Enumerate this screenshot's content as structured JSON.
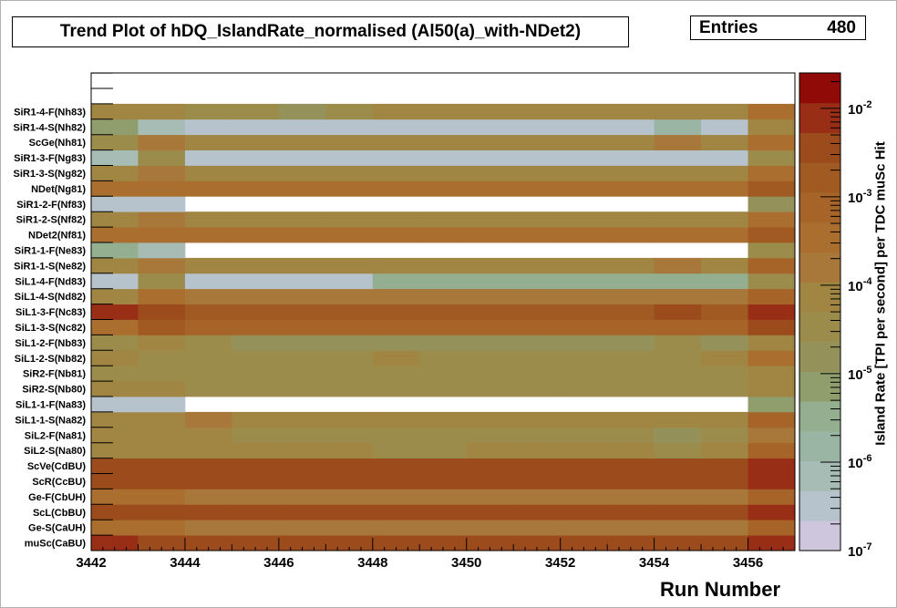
{
  "title": "Trend Plot of hDQ_IslandRate_normalised (Al50(a)_with-NDet2)",
  "stats": {
    "label": "Entries",
    "value": "480"
  },
  "chart_data": {
    "type": "heatmap",
    "title": "Trend Plot of hDQ_IslandRate_normalised (Al50(a)_with-NDet2)",
    "xlabel": "Run Number",
    "zlabel": "Island Rate [TPI per second] per TDC muSc Hit",
    "xlim": [
      3442,
      3457
    ],
    "x_ticks": [
      3442,
      3444,
      3446,
      3448,
      3450,
      3452,
      3454,
      3456
    ],
    "x_tick_labels": [
      "3442",
      "3444",
      "3446",
      "3448",
      "3450",
      "3452",
      "3454",
      "3456"
    ],
    "runs": [
      3442,
      3443,
      3444,
      3445,
      3446,
      3447,
      3448,
      3449,
      3450,
      3451,
      3452,
      3453,
      3454,
      3455,
      3456
    ],
    "z_scale": "log",
    "z_ticks_exponent": [
      -7,
      -6,
      -5,
      -4,
      -3,
      -2
    ],
    "z_tick_labels": [
      "10^-7",
      "10^-6",
      "10^-5",
      "10^-4",
      "10^-3",
      "10^-2"
    ],
    "z_palette": [
      "#cdc6dc",
      "#b6c3cc",
      "#a6bcb4",
      "#9ab5a4",
      "#94ae90",
      "#909e6e",
      "#94925a",
      "#9c8c4c",
      "#a08642",
      "#a8783a",
      "#aa6e2e",
      "#a66428",
      "#a05a22",
      "#9c4c1c",
      "#982e16",
      "#900a08"
    ],
    "empty_rows": [],
    "rows": [
      {
        "label": "muSc(CaBU)",
        "values": [
          -2.2,
          -2.5,
          -2.6,
          -2.6,
          -2.6,
          -2.6,
          -2.6,
          -2.6,
          -2.6,
          -2.6,
          -2.6,
          -2.6,
          -2.6,
          -2.6,
          -2.1
        ]
      },
      {
        "label": "Ge-S(CaUH)",
        "values": [
          -3.6,
          -3.6,
          -3.8,
          -3.8,
          -3.8,
          -3.8,
          -3.8,
          -3.8,
          -3.8,
          -3.8,
          -3.8,
          -3.8,
          -3.8,
          -3.8,
          -3.0
        ]
      },
      {
        "label": "ScL(CbBU)",
        "values": [
          -2.3,
          -2.5,
          -2.6,
          -2.6,
          -2.6,
          -2.6,
          -2.6,
          -2.6,
          -2.6,
          -2.6,
          -2.6,
          -2.6,
          -2.6,
          -2.6,
          -2.2
        ]
      },
      {
        "label": "Ge-F(CbUH)",
        "values": [
          -3.5,
          -3.6,
          -3.7,
          -3.7,
          -3.7,
          -3.7,
          -3.7,
          -3.7,
          -3.7,
          -3.7,
          -3.7,
          -3.7,
          -3.7,
          -3.7,
          -3.0
        ]
      },
      {
        "label": "ScR(CcBU)",
        "values": [
          -2.3,
          -2.5,
          -2.6,
          -2.6,
          -2.6,
          -2.6,
          -2.6,
          -2.6,
          -2.6,
          -2.6,
          -2.6,
          -2.6,
          -2.6,
          -2.6,
          -2.2
        ]
      },
      {
        "label": "ScVe(CdBU)",
        "values": [
          -2.6,
          -2.5,
          -2.6,
          -2.6,
          -2.6,
          -2.6,
          -2.6,
          -2.6,
          -2.6,
          -2.6,
          -2.6,
          -2.6,
          -2.6,
          -2.6,
          -2.2
        ]
      },
      {
        "label": "SiL2-S(Na80)",
        "values": [
          -4.0,
          -4.1,
          -4.0,
          -4.2,
          -4.2,
          -4.2,
          -4.4,
          -4.4,
          -4.3,
          -4.2,
          -4.3,
          -4.3,
          -4.4,
          -4.2,
          -3.2
        ]
      },
      {
        "label": "SiL2-F(Na81)",
        "values": [
          -4.2,
          -4.3,
          -4.3,
          -4.5,
          -4.5,
          -4.5,
          -4.5,
          -4.5,
          -4.6,
          -4.5,
          -4.5,
          -4.5,
          -4.7,
          -4.4,
          -3.8
        ]
      },
      {
        "label": "SiL1-1-S(Na82)",
        "values": [
          -4.0,
          -4.1,
          -3.9,
          -4.1,
          -4.1,
          -4.1,
          -4.1,
          -4.1,
          -4.1,
          -4.1,
          -4.1,
          -4.1,
          -4.1,
          -4.1,
          -3.2
        ]
      },
      {
        "label": "SiL1-1-F(Na83)",
        "values": [
          -6.5,
          -6.5,
          null,
          null,
          null,
          null,
          null,
          null,
          null,
          null,
          null,
          null,
          null,
          null,
          -5.2
        ]
      },
      {
        "label": "SiR2-S(Nb80)",
        "values": [
          -4.3,
          -4.3,
          -4.4,
          -4.4,
          -4.4,
          -4.4,
          -4.4,
          -4.4,
          -4.4,
          -4.4,
          -4.4,
          -4.4,
          -4.4,
          -4.4,
          -4.0
        ]
      },
      {
        "label": "SiR2-F(Nb81)",
        "values": [
          -4.5,
          -4.6,
          -4.6,
          -4.6,
          -4.6,
          -4.6,
          -4.6,
          -4.6,
          -4.6,
          -4.6,
          -4.6,
          -4.6,
          -4.6,
          -4.6,
          -4.0
        ]
      },
      {
        "label": "SiL1-2-S(Nb82)",
        "values": [
          -4.3,
          -4.4,
          -4.4,
          -4.5,
          -4.5,
          -4.5,
          -4.3,
          -4.4,
          -4.5,
          -4.4,
          -4.5,
          -4.4,
          -4.5,
          -4.3,
          -3.5
        ]
      },
      {
        "label": "SiL1-2-F(Nb83)",
        "values": [
          -4.5,
          -4.2,
          -4.6,
          -4.8,
          -4.8,
          -4.8,
          -4.7,
          -4.7,
          -4.7,
          -4.7,
          -4.7,
          -4.7,
          -4.6,
          -4.7,
          -4.1
        ]
      },
      {
        "label": "SiL1-3-S(Nc82)",
        "values": [
          -3.3,
          -2.9,
          -3.0,
          -3.0,
          -3.0,
          -3.0,
          -3.0,
          -3.0,
          -3.0,
          -3.0,
          -3.0,
          -3.0,
          -3.0,
          -3.0,
          -2.4
        ]
      },
      {
        "label": "SiL1-3-F(Nc83)",
        "values": [
          -2.2,
          -2.4,
          -2.8,
          -2.8,
          -2.8,
          -2.8,
          -2.8,
          -2.8,
          -2.8,
          -2.8,
          -2.8,
          -2.8,
          -2.5,
          -2.8,
          -2.0
        ]
      },
      {
        "label": "SiL1-4-S(Nd82)",
        "values": [
          -4.0,
          -3.6,
          -3.9,
          -3.9,
          -3.9,
          -3.9,
          -3.9,
          -3.9,
          -3.9,
          -3.9,
          -3.9,
          -3.9,
          -3.9,
          -3.9,
          -3.0
        ]
      },
      {
        "label": "SiL1-4-F(Nd83)",
        "values": [
          -6.5,
          -4.5,
          -6.5,
          -6.5,
          -6.5,
          -6.5,
          -5.5,
          -5.5,
          -5.5,
          -5.5,
          -5.5,
          -5.5,
          -5.5,
          -5.5,
          -4.5
        ]
      },
      {
        "label": "SiR1-1-S(Ne82)",
        "values": [
          -4.0,
          -3.8,
          -4.1,
          -4.1,
          -4.1,
          -4.1,
          -4.1,
          -4.1,
          -4.1,
          -4.1,
          -4.1,
          -4.1,
          -3.9,
          -4.1,
          -3.2
        ]
      },
      {
        "label": "SiR1-1-F(Ne83)",
        "values": [
          -5.4,
          -6.3,
          null,
          null,
          null,
          null,
          null,
          null,
          null,
          null,
          null,
          null,
          null,
          null,
          -4.5
        ]
      },
      {
        "label": "NDet2(Nf81)",
        "values": [
          -3.5,
          -3.3,
          -3.6,
          -3.6,
          -3.6,
          -3.6,
          -3.6,
          -3.6,
          -3.6,
          -3.6,
          -3.6,
          -3.6,
          -3.6,
          -3.6,
          -2.9
        ]
      },
      {
        "label": "SiR1-2-S(Nf82)",
        "values": [
          -4.2,
          -3.8,
          -4.1,
          -4.3,
          -4.3,
          -4.3,
          -4.3,
          -4.3,
          -4.3,
          -4.3,
          -4.3,
          -4.3,
          -4.3,
          -4.3,
          -3.5
        ]
      },
      {
        "label": "SiR1-2-F(Nf83)",
        "values": [
          -6.5,
          -6.5,
          null,
          null,
          null,
          null,
          null,
          null,
          null,
          null,
          null,
          null,
          null,
          null,
          -4.7
        ]
      },
      {
        "label": "NDet(Ng81)",
        "values": [
          -3.5,
          -3.3,
          -3.6,
          -3.6,
          -3.6,
          -3.6,
          -3.6,
          -3.6,
          -3.6,
          -3.6,
          -3.6,
          -3.6,
          -3.6,
          -3.6,
          -2.9
        ]
      },
      {
        "label": "SiR1-3-S(Ng82)",
        "values": [
          -4.1,
          -3.7,
          -4.0,
          -4.0,
          -4.0,
          -4.0,
          -4.2,
          -4.2,
          -4.2,
          -4.0,
          -4.1,
          -4.0,
          -4.2,
          -4.2,
          -3.4
        ]
      },
      {
        "label": "SiR1-3-F(Ng83)",
        "values": [
          -6.0,
          -4.6,
          -6.5,
          -6.5,
          -6.5,
          -6.5,
          -6.5,
          -6.5,
          -6.5,
          -6.5,
          -6.5,
          -6.5,
          -6.5,
          -6.5,
          -4.5
        ]
      },
      {
        "label": "ScGe(Nh81)",
        "values": [
          -4.4,
          -3.7,
          -4.0,
          -4.0,
          -4.0,
          -4.0,
          -4.0,
          -4.0,
          -4.0,
          -4.0,
          -4.0,
          -4.0,
          -3.8,
          -4.0,
          -3.3
        ]
      },
      {
        "label": "SiR1-4-S(Nh82)",
        "values": [
          -5.3,
          -6.0,
          -6.5,
          -6.5,
          -6.5,
          -6.5,
          -6.5,
          -6.5,
          -6.5,
          -6.5,
          -6.5,
          -6.5,
          -5.8,
          -6.5,
          -4.3
        ]
      },
      {
        "label": "SiR1-4-F(Nh83)",
        "values": [
          -4.2,
          -4.0,
          -4.5,
          -4.5,
          -4.7,
          -4.5,
          -4.3,
          -4.3,
          -4.3,
          -4.3,
          -4.3,
          -4.3,
          -4.3,
          -4.3,
          -3.6
        ]
      }
    ]
  }
}
